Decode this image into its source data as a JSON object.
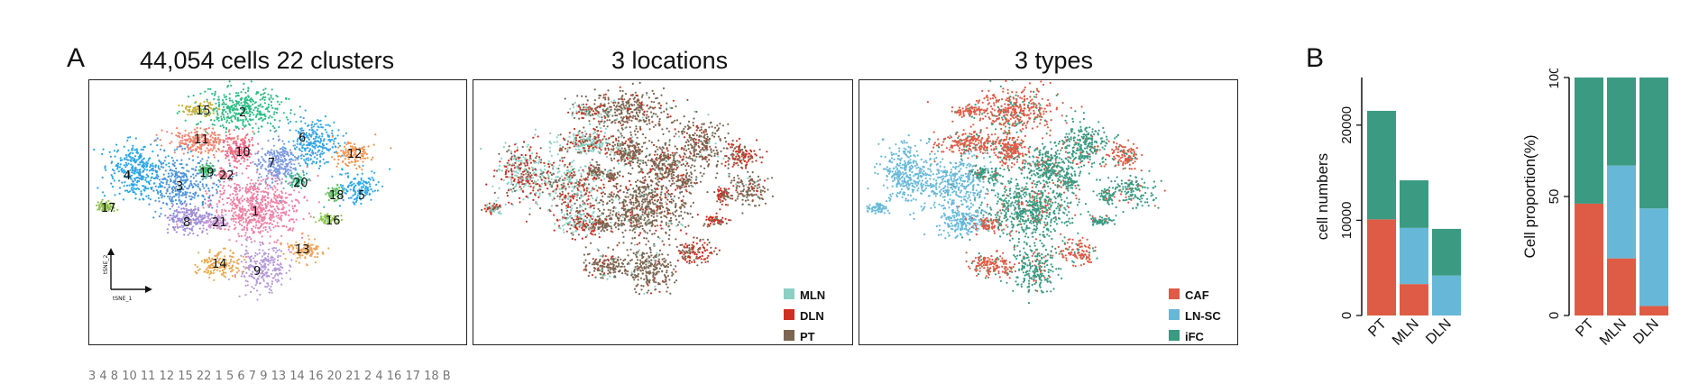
{
  "figure": {
    "panel_a_letter": "A",
    "panel_b_letter": "B",
    "titles": [
      "44,054 cells  22 clusters",
      "3 locations",
      "3 types"
    ],
    "axis_tsne1": "tSNE_1",
    "axis_tsne2": "tSNE_2",
    "footer_text": "3 4 8 10 11 12 15 22     1 5 6 7 9 13 14 16 20 21     2 4 16 17 18     B"
  },
  "colors": {
    "mln": "#8ccfc4",
    "dln": "#cf2f1f",
    "pt": "#7c6651",
    "caf": "#de5b45",
    "lnsc": "#67b8d8",
    "ifc": "#3a9a82"
  },
  "umap_clusters": [
    {
      "id": "1",
      "color": "#ee82a5"
    },
    {
      "id": "2",
      "color": "#2dbd85"
    },
    {
      "id": "3",
      "color": "#4b93d8"
    },
    {
      "id": "4",
      "color": "#27a6e6"
    },
    {
      "id": "5",
      "color": "#2ca9e9"
    },
    {
      "id": "6",
      "color": "#35a6e4"
    },
    {
      "id": "7",
      "color": "#7f9be1"
    },
    {
      "id": "8",
      "color": "#a18ed8"
    },
    {
      "id": "9",
      "color": "#b59ad9"
    },
    {
      "id": "10",
      "color": "#ea6c8b"
    },
    {
      "id": "11",
      "color": "#f0856f"
    },
    {
      "id": "12",
      "color": "#f3934d"
    },
    {
      "id": "13",
      "color": "#f1a45a"
    },
    {
      "id": "14",
      "color": "#e8a94f"
    },
    {
      "id": "15",
      "color": "#c8b23b"
    },
    {
      "id": "16",
      "color": "#8cc653"
    },
    {
      "id": "17",
      "color": "#8dbd4e"
    },
    {
      "id": "18",
      "color": "#69c468"
    },
    {
      "id": "19",
      "color": "#48b86f"
    },
    {
      "id": "20",
      "color": "#38b98b"
    },
    {
      "id": "21",
      "color": "#c797d6"
    },
    {
      "id": "22",
      "color": "#e77c91"
    }
  ],
  "legend_locations": [
    "MLN",
    "DLN",
    "PT"
  ],
  "legend_types": [
    "CAF",
    "LN-SC",
    "iFC"
  ],
  "chart_data": [
    {
      "type": "bar",
      "stacked": true,
      "categories": [
        "PT",
        "MLN",
        "DLN"
      ],
      "ylabel": "cell numbers",
      "yticks": [
        "0",
        "10000",
        "20000"
      ],
      "ylim": [
        0,
        25000
      ],
      "series": [
        {
          "color": "#de5b45",
          "values": [
            10100,
            3300,
            0
          ]
        },
        {
          "color": "#67b8d8",
          "values": [
            0,
            5900,
            4200
          ]
        },
        {
          "color": "#3a9a82",
          "values": [
            11400,
            5000,
            4900
          ]
        }
      ]
    },
    {
      "type": "bar",
      "stacked": true,
      "categories": [
        "PT",
        "MLN",
        "DLN"
      ],
      "ylabel": "Cell proportion(%)",
      "yticks": [
        "0",
        "50",
        "100"
      ],
      "ylim": [
        0,
        100
      ],
      "series": [
        {
          "color": "#de5b45",
          "values": [
            47,
            24,
            4
          ]
        },
        {
          "color": "#67b8d8",
          "values": [
            0,
            39,
            41
          ]
        },
        {
          "color": "#3a9a82",
          "values": [
            53,
            37,
            55
          ]
        }
      ]
    }
  ]
}
